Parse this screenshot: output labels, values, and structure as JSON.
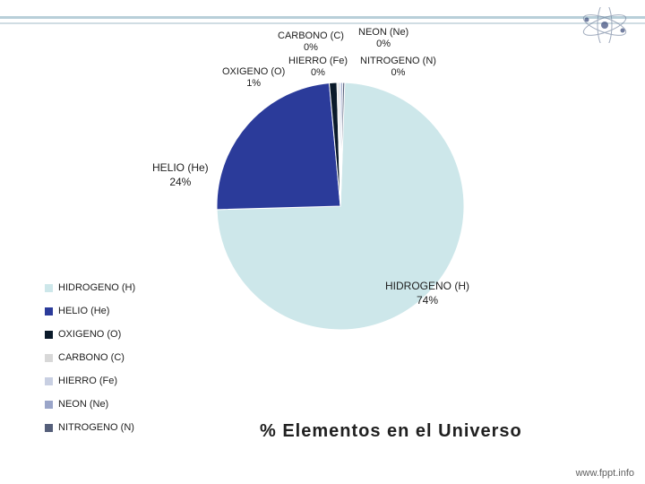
{
  "chart": {
    "type": "pie",
    "title": "% Elementos en el Universo",
    "title_fontsize": 20,
    "background_color": "#ffffff",
    "slices": [
      {
        "name": "HIDROGENO (H)",
        "pct": 74,
        "color": "#cde7ea",
        "label": "HIDROGENO (H)\n74%"
      },
      {
        "name": "HELIO (He)",
        "pct": 24,
        "color": "#2b3b9a",
        "label": "HELIO (He)\n24%"
      },
      {
        "name": "OXIGENO (O)",
        "pct": 1,
        "color": "#0a1a2a",
        "label": "OXIGENO (O)\n1%"
      },
      {
        "name": "CARBONO (C)",
        "pct": 0,
        "color": "#d8d8d8",
        "label": "CARBONO (C)\n0%"
      },
      {
        "name": "HIERRO (Fe)",
        "pct": 0,
        "color": "#c8cfe2",
        "label": "HIERRO (Fe)\n0%"
      },
      {
        "name": "NEON (Ne)",
        "pct": 0,
        "color": "#9aa5c9",
        "label": "NEON (Ne)\n0%"
      },
      {
        "name": "NITROGENO (N)",
        "pct": 0,
        "color": "#555f7a",
        "label": "NITROGENO (N)\n0%"
      }
    ],
    "legend_items": [
      {
        "label": "HIDROGENO (H)",
        "color": "#cde7ea"
      },
      {
        "label": "HELIO (He)",
        "color": "#2b3b9a"
      },
      {
        "label": "OXIGENO (O)",
        "color": "#0a1a2a"
      },
      {
        "label": "CARBONO (C)",
        "color": "#d8d8d8"
      },
      {
        "label": "HIERRO (Fe)",
        "color": "#c8cfe2"
      },
      {
        "label": "NEON (Ne)",
        "color": "#9aa5c9"
      },
      {
        "label": "NITROGENO (N)",
        "color": "#555f7a"
      }
    ],
    "callouts": {
      "carbono": "CARBONO (C)\n0%",
      "neon": "NEON (Ne)\n0%",
      "hierro": "HIERRO (Fe)\n0%",
      "nitrogeno": "NITROGENO (N)\n0%",
      "oxigeno": "OXIGENO (O)\n1%",
      "helio": "HELIO (He)\n24%",
      "hidrogeno": "HIDROGENO (H)\n74%"
    }
  },
  "slide": {
    "header_line_color": "#b8cfd9",
    "footer_link": "www.fppt.info"
  }
}
